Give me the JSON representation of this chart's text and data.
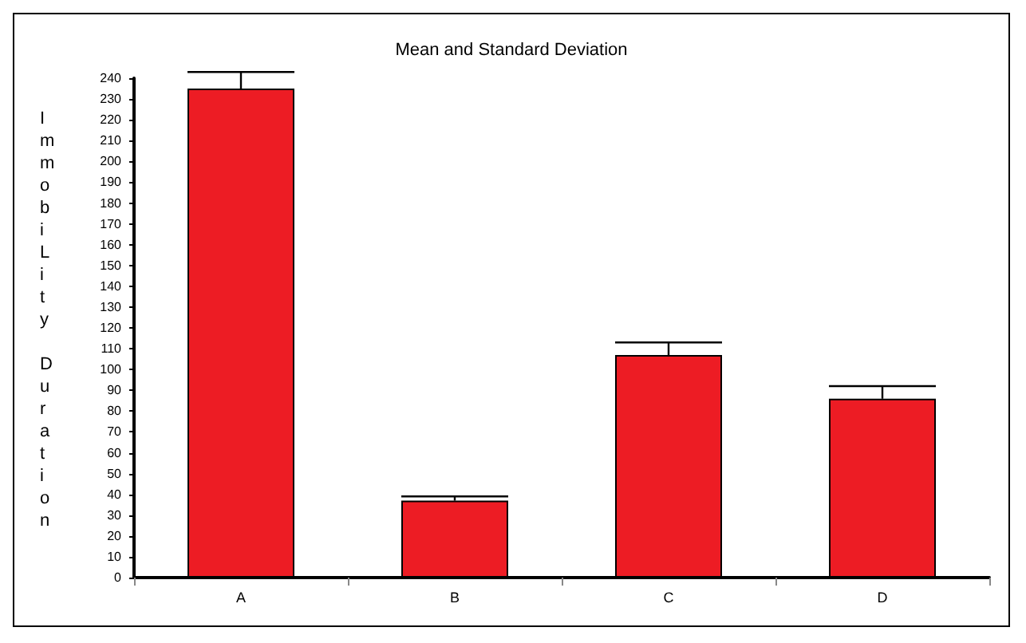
{
  "chart_data": {
    "type": "bar",
    "title": "Mean and Standard Deviation",
    "ylabel": "ImmobiLity Duration",
    "categories": [
      "A",
      "B",
      "C",
      "D"
    ],
    "values": [
      235,
      37,
      107,
      86
    ],
    "errors": [
      [
        235,
        243
      ],
      [
        37,
        39
      ],
      [
        107,
        113
      ],
      [
        86,
        92
      ]
    ],
    "color": "#ed1c24",
    "ylim": [
      0,
      240
    ],
    "yticks": [
      0,
      10,
      20,
      30,
      40,
      50,
      60,
      70,
      80,
      90,
      100,
      110,
      120,
      130,
      140,
      150,
      160,
      170,
      180,
      190,
      200,
      210,
      220,
      230,
      240
    ],
    "grid": false
  }
}
